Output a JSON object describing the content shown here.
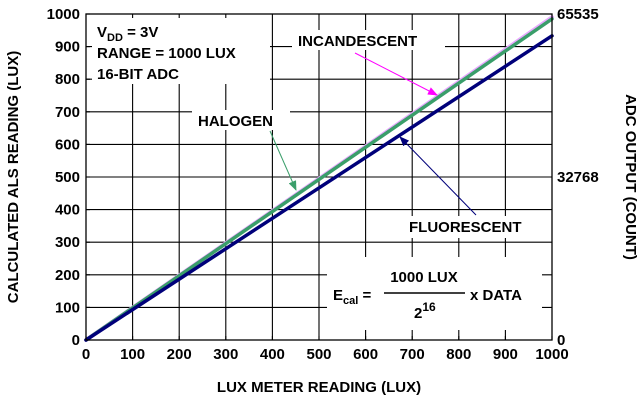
{
  "chart_data": {
    "type": "line",
    "xlabel": "LUX METER READING (LUX)",
    "ylabel": "CALCULATED ALS READING (LUX)",
    "y2label": "ADC OUTPUT (COUNT)",
    "xlim": [
      0,
      1000
    ],
    "ylim": [
      0,
      1000
    ],
    "grid": true,
    "x_ticks": [
      "0",
      "100",
      "200",
      "300",
      "400",
      "500",
      "600",
      "700",
      "800",
      "900",
      "1000"
    ],
    "y_ticks": [
      "0",
      "100",
      "200",
      "300",
      "400",
      "500",
      "600",
      "700",
      "800",
      "900",
      "1000"
    ],
    "y2_ticks": [
      {
        "label": "0",
        "at": 0
      },
      {
        "label": "32768",
        "at": 500
      },
      {
        "label": "65535",
        "at": 1000
      }
    ],
    "series": [
      {
        "name": "INCANDESCENT",
        "x": [
          0,
          1000
        ],
        "y": [
          0,
          990
        ],
        "color": "#e8a8ff"
      },
      {
        "name": "HALOGEN",
        "x": [
          0,
          1000
        ],
        "y": [
          0,
          985
        ],
        "color": "#3a9e6a"
      },
      {
        "name": "FLUORESCENT",
        "x": [
          0,
          1000
        ],
        "y": [
          0,
          933
        ],
        "color": "#00007a"
      }
    ],
    "conditions": {
      "vdd_main": "V",
      "vdd_sub": "DD",
      "vdd_value": " = 3V",
      "range": "RANGE = 1000 LUX",
      "adc": "16-BIT ADC"
    },
    "formula": {
      "lhs_main": "E",
      "lhs_sub": "cal",
      "equals": " =",
      "numerator": "1000 LUX",
      "denominator_base": "2",
      "denominator_exp": "16",
      "tail": "x DATA"
    },
    "annotations": {
      "incandescent": {
        "label": "INCANDESCENT",
        "arrow_color": "#ff00ff"
      },
      "halogen": {
        "label": "HALOGEN",
        "arrow_color": "#3a9e6a"
      },
      "fluorescent": {
        "label": "FLUORESCENT",
        "arrow_color": "#00007a"
      }
    }
  }
}
